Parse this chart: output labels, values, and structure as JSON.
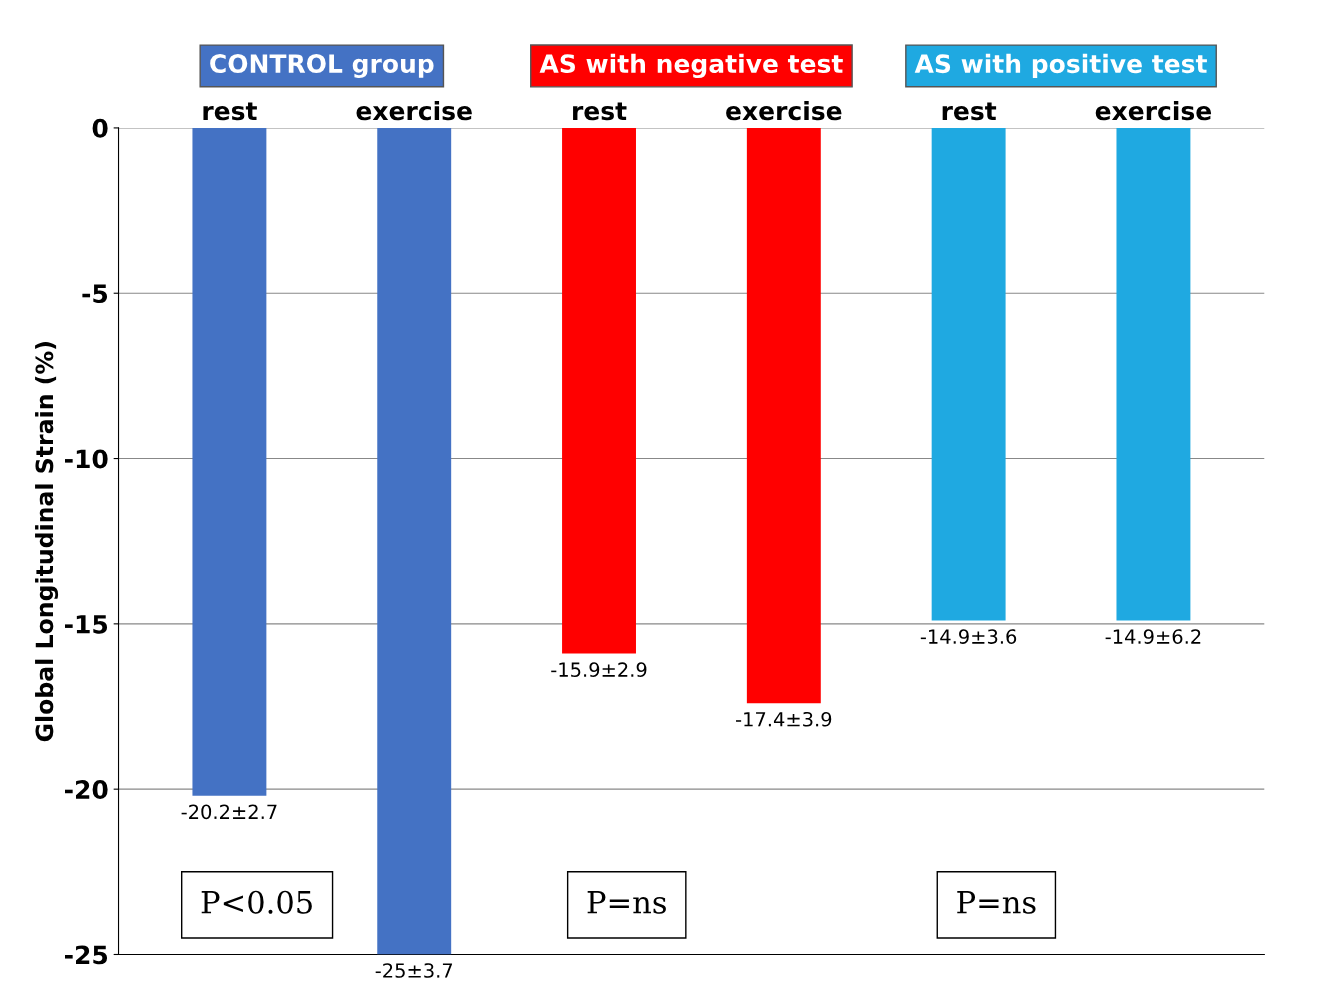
{
  "chart_data": {
    "type": "bar",
    "ylabel": "Global Longitudinal Strain (%)",
    "categories": [
      "rest",
      "exercise",
      "rest",
      "exercise",
      "rest",
      "exercise"
    ],
    "values": [
      -20.2,
      -25,
      -15.9,
      -17.4,
      -14.9,
      -14.9
    ],
    "colors": [
      "#4472c4",
      "#4472c4",
      "#ff0000",
      "#ff0000",
      "#1fa9e1",
      "#1fa9e1"
    ],
    "value_labels": [
      "-20.2±2.7",
      "-25±3.7",
      "-15.9±2.9",
      "-17.4±3.9",
      "-14.9±3.6",
      "-14.9±6.2"
    ],
    "annotations": [
      "CONTROL group",
      "AS with negative test",
      "AS with positive test",
      "P<0.05",
      "P=ns",
      "P=ns"
    ],
    "ylim": [
      -25,
      0
    ],
    "yticks": [
      0,
      -5,
      -10,
      -15,
      -20,
      -25
    ],
    "grid": "y"
  }
}
